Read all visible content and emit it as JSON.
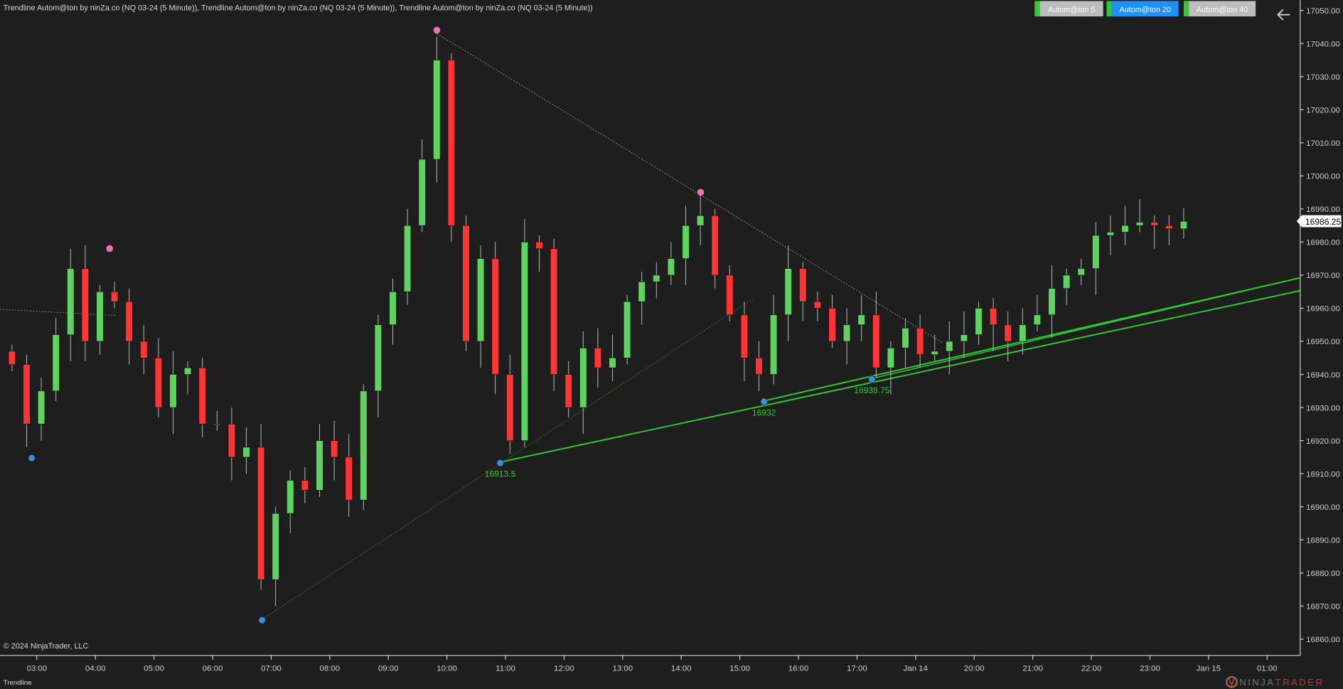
{
  "header": {
    "title": "Trendline Autom@ton by ninZa.co (NQ 03-24 (5 Minute)), Trendline Autom@ton by ninZa.co (NQ 03-24 (5 Minute)), Trendline Autom@ton by ninZa.co (NQ 03-24 (5 Minute))"
  },
  "buttons": [
    {
      "label": "Autom@ton  5",
      "active": false
    },
    {
      "label": "Autom@ton  20",
      "active": true
    },
    {
      "label": "Autom@ton  40",
      "active": false
    }
  ],
  "back_icon": "arrow-left-icon",
  "colors": {
    "background": "#1e1e1e",
    "up": "#5fd35f",
    "down": "#ff3434",
    "trendline": "#2ecc2e",
    "swing_high": "#f06fb0",
    "swing_low": "#3a8fe0",
    "button_active": "#1e90ff",
    "button": "#bdbdbd",
    "axis": "#d0d0d0"
  },
  "price_axis": {
    "max": 17050,
    "min": 16860,
    "step": 10,
    "last_price": "16986.25"
  },
  "time_axis": {
    "labels": [
      "03:00",
      "04:00",
      "05:00",
      "06:00",
      "07:00",
      "08:00",
      "09:00",
      "10:00",
      "11:00",
      "12:00",
      "13:00",
      "14:00",
      "15:00",
      "16:00",
      "17:00",
      "Jan 14",
      "20:00",
      "21:00",
      "22:00",
      "23:00",
      "Jan 15",
      "01:00"
    ]
  },
  "chart_data": {
    "type": "candlestick",
    "closes": [
      16943,
      16925,
      16935,
      16952,
      16972,
      16950,
      16965,
      16962,
      16950,
      16945,
      16930,
      16940,
      16942,
      16925,
      16925,
      16915,
      16918,
      16878,
      16898,
      16908,
      16905,
      16920,
      16915,
      16902,
      16935,
      16955,
      16965,
      16985,
      17005,
      17035,
      16985,
      16950,
      16975,
      16940,
      16920,
      16980,
      16978,
      16940,
      16930,
      16948,
      16942,
      16945,
      16962,
      16968,
      16970,
      16975,
      16985,
      16988,
      16970,
      16958,
      16945,
      16940,
      16958,
      16972,
      16962,
      16960,
      16950,
      16955,
      16958,
      16942,
      16948,
      16954,
      16946,
      16947,
      16950,
      16952,
      16960,
      16955,
      16950,
      16955,
      16958,
      16966,
      16970,
      16972,
      16982,
      16983,
      16985,
      16986,
      16985,
      16984,
      16986.25
    ],
    "swing_highs": [
      16977,
      17043,
      16994
    ],
    "swing_lows": [
      16915,
      16866,
      16913.5,
      16932,
      16938.75
    ],
    "support_labels": [
      "16913.5",
      "16932",
      "16938.75"
    ]
  },
  "footer": {
    "copyright": "© 2024 NinjaTrader, LLC",
    "tab": "Trendline",
    "logo": "NINJATRADER"
  }
}
